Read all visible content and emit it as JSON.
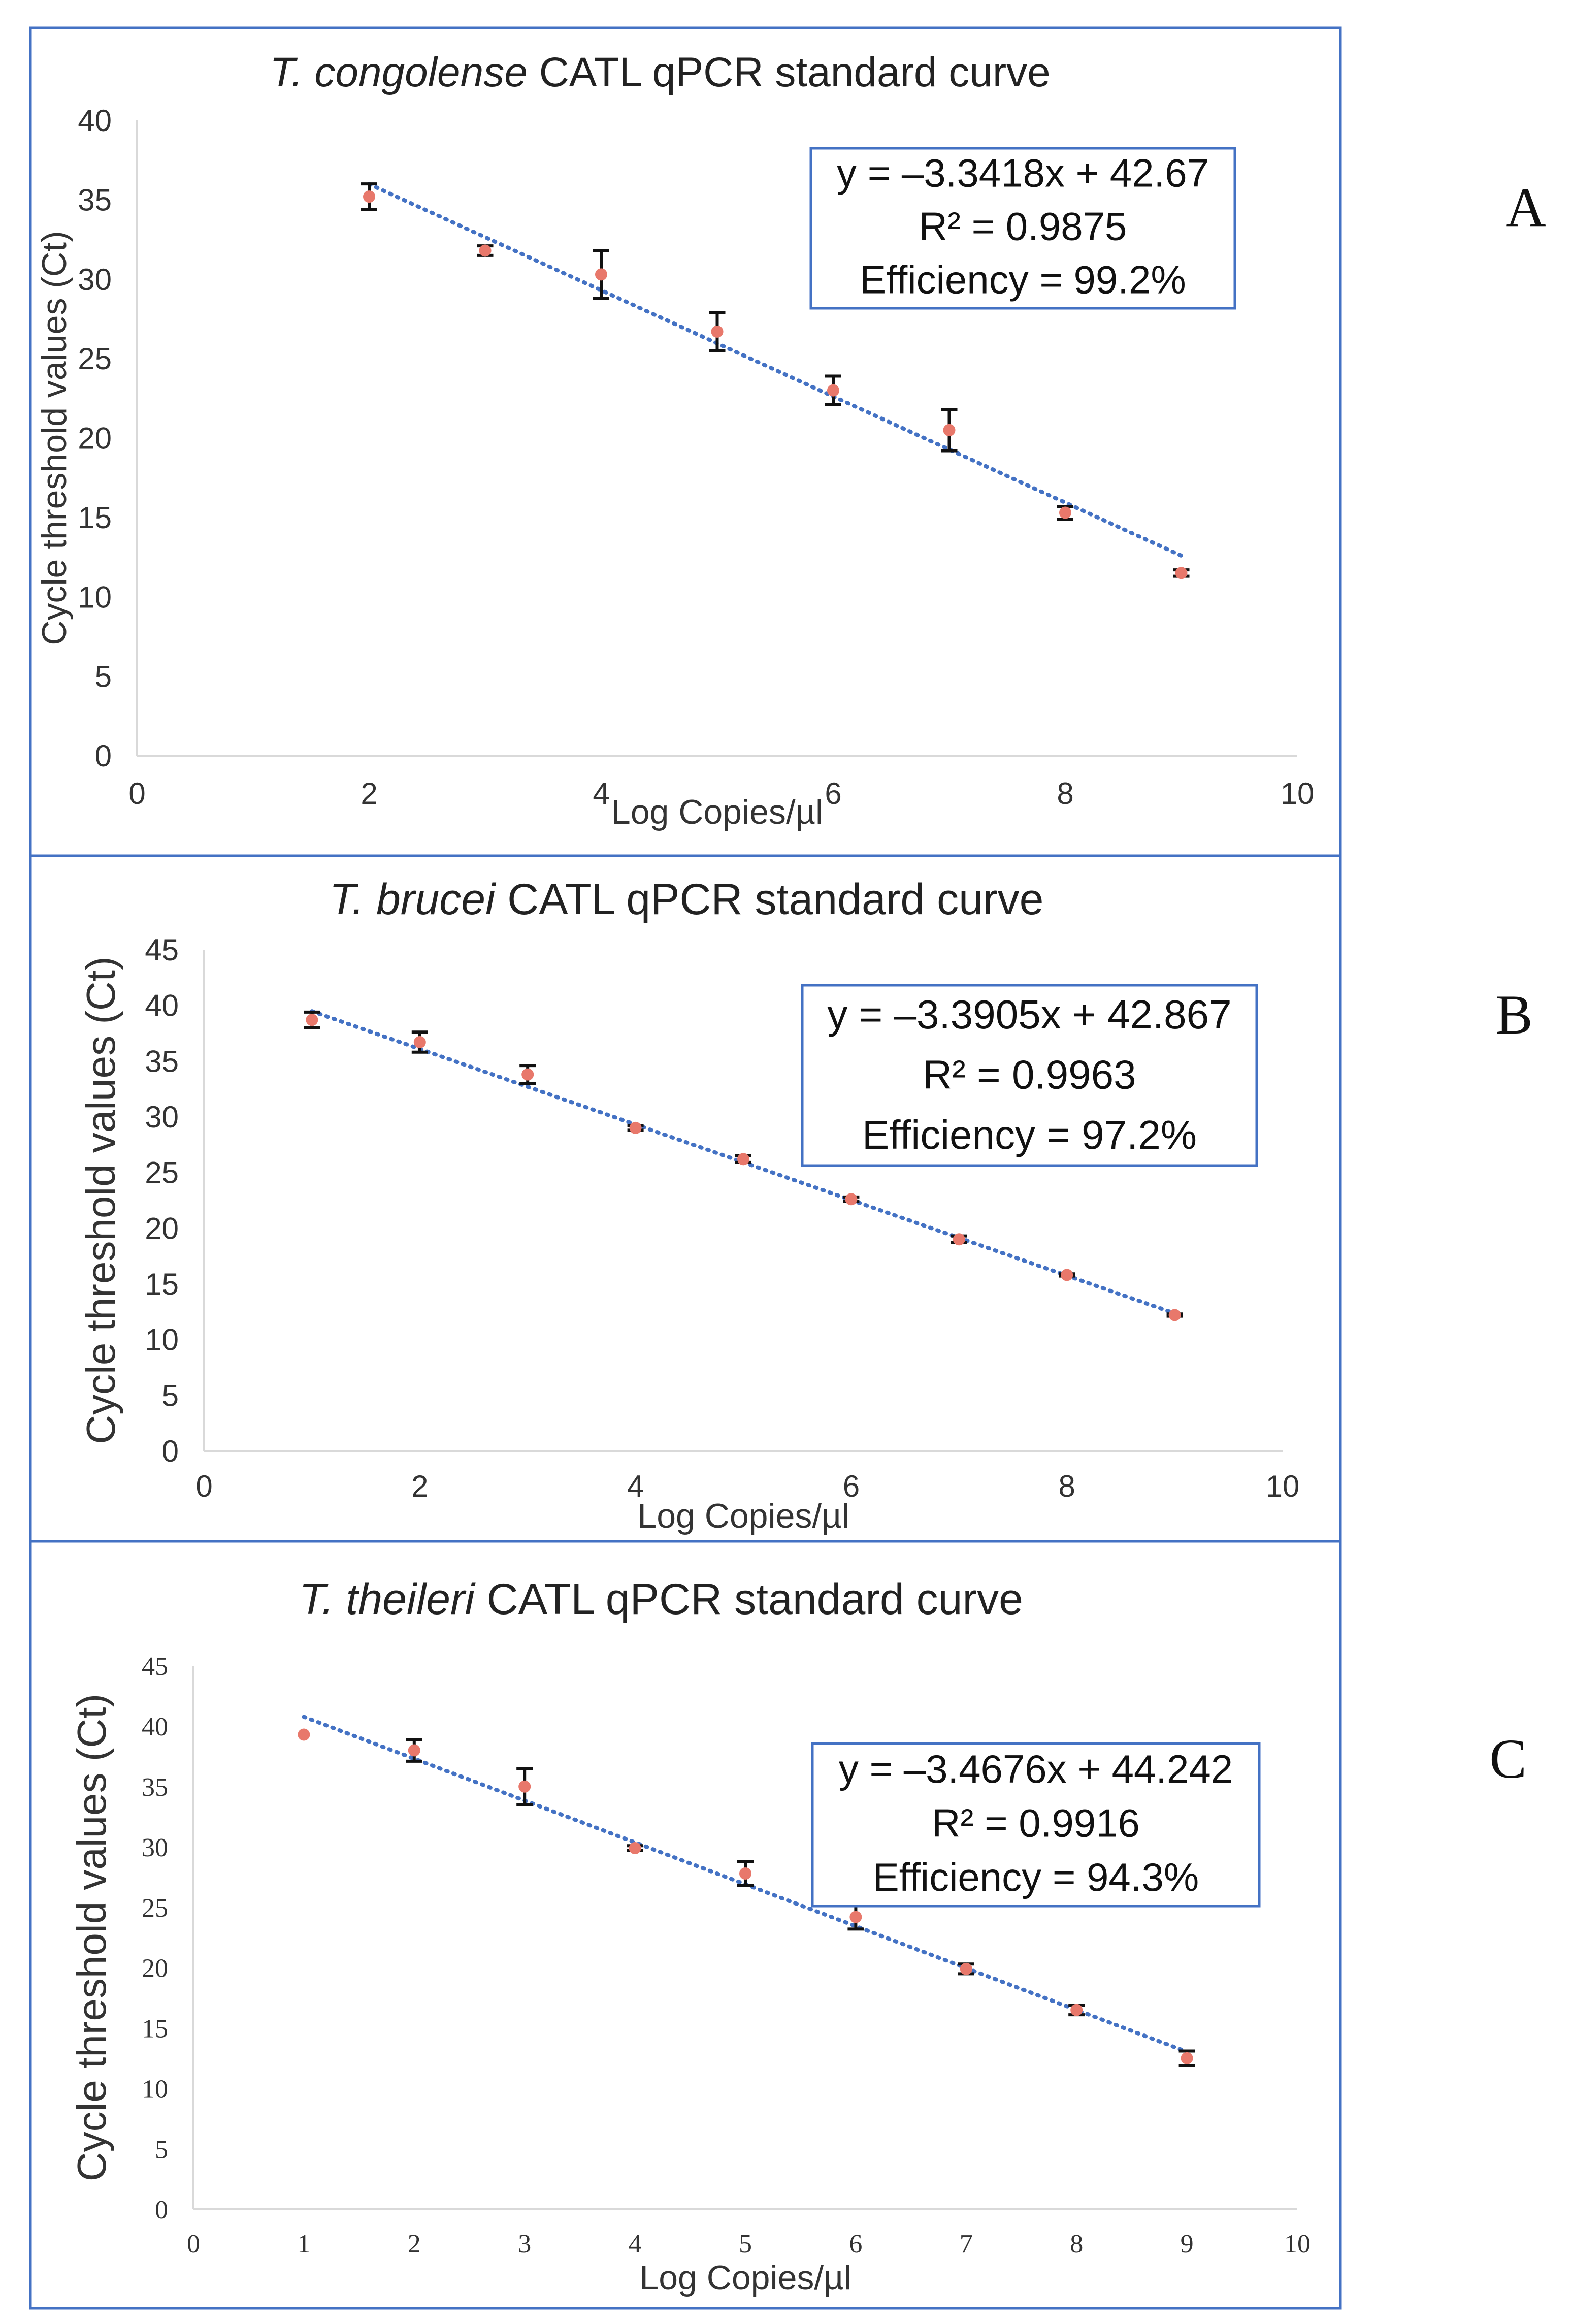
{
  "figure": {
    "panel_border_color": "#4472C4"
  },
  "chart_data": [
    {
      "type": "scatter",
      "panel_label": "A",
      "title_italic": "T. congolense",
      "title_rest": " CATL qPCR standard curve",
      "xlabel": "Log Copies/µl",
      "ylabel": "Cycle threshold values (Ct)",
      "xlim": [
        0,
        10
      ],
      "ylim": [
        0,
        40
      ],
      "x_ticks": [
        0,
        2,
        4,
        6,
        8,
        10
      ],
      "y_ticks": [
        0,
        5,
        10,
        15,
        20,
        25,
        30,
        35,
        40
      ],
      "grid": false,
      "series": [
        {
          "name": "Ct",
          "x": [
            2,
            3,
            4,
            5,
            6,
            7,
            8,
            9
          ],
          "y": [
            35.2,
            31.8,
            30.3,
            26.7,
            23.0,
            20.5,
            15.3,
            11.5
          ],
          "err": [
            0.8,
            0.3,
            1.5,
            1.2,
            0.9,
            1.3,
            0.4,
            0.2
          ],
          "color": "#E8786B"
        }
      ],
      "trendline": {
        "slope": -3.3418,
        "intercept": 42.67,
        "x_from": 2,
        "x_to": 9,
        "color": "#4472C4"
      },
      "annotation": [
        "y = –3.3418x + 42.67",
        "R² = 0.9875",
        "Efficiency = 99.2%"
      ],
      "legend_position": "top-right"
    },
    {
      "type": "scatter",
      "panel_label": "B",
      "title_italic": "T. brucei",
      "title_rest": " CATL qPCR standard curve",
      "xlabel": "Log Copies/µl",
      "ylabel": "Cycle threshold values (Ct)",
      "xlim": [
        0,
        10
      ],
      "ylim": [
        0,
        45
      ],
      "x_ticks": [
        0,
        2,
        4,
        6,
        8,
        10
      ],
      "y_ticks": [
        0,
        5,
        10,
        15,
        20,
        25,
        30,
        35,
        40,
        45
      ],
      "grid": false,
      "series": [
        {
          "name": "Ct",
          "x": [
            1,
            2,
            3,
            4,
            5,
            6,
            7,
            8,
            9
          ],
          "y": [
            38.7,
            36.7,
            33.8,
            29.0,
            26.2,
            22.6,
            19.0,
            15.8,
            12.2
          ],
          "err": [
            0.7,
            0.9,
            0.8,
            0.2,
            0.3,
            0.2,
            0.3,
            0.1,
            0.1
          ],
          "color": "#E8786B"
        }
      ],
      "trendline": {
        "slope": -3.3905,
        "intercept": 42.867,
        "x_from": 1,
        "x_to": 9,
        "color": "#4472C4"
      },
      "annotation": [
        "y = –3.3905x + 42.867",
        "R² = 0.9963",
        "Efficiency = 97.2%"
      ],
      "legend_position": "right"
    },
    {
      "type": "scatter",
      "panel_label": "C",
      "title_italic": "T. theileri",
      "title_rest": " CATL qPCR standard curve",
      "xlabel": "Log Copies/µl",
      "ylabel": "Cycle threshold values (Ct)",
      "xlim": [
        0,
        10
      ],
      "ylim": [
        0,
        45
      ],
      "x_ticks": [
        0,
        1,
        2,
        3,
        4,
        5,
        6,
        7,
        8,
        9,
        10
      ],
      "y_ticks": [
        0,
        5,
        10,
        15,
        20,
        25,
        30,
        35,
        40,
        45
      ],
      "grid": false,
      "series": [
        {
          "name": "Ct",
          "x": [
            1,
            2,
            3,
            4,
            5,
            6,
            7,
            8,
            9
          ],
          "y": [
            39.3,
            38.0,
            35.0,
            29.9,
            27.8,
            24.2,
            19.9,
            16.5,
            12.5
          ],
          "err": [
            0,
            0.9,
            1.5,
            0.2,
            1.0,
            1.0,
            0.4,
            0.4,
            0.6
          ],
          "color": "#E8786B"
        }
      ],
      "trendline": {
        "slope": -3.4676,
        "intercept": 44.242,
        "x_from": 1,
        "x_to": 9,
        "color": "#4472C4"
      },
      "annotation": [
        "y = –3.4676x + 44.242",
        "R² = 0.9916",
        "Efficiency = 94.3%"
      ],
      "legend_position": "right"
    }
  ]
}
